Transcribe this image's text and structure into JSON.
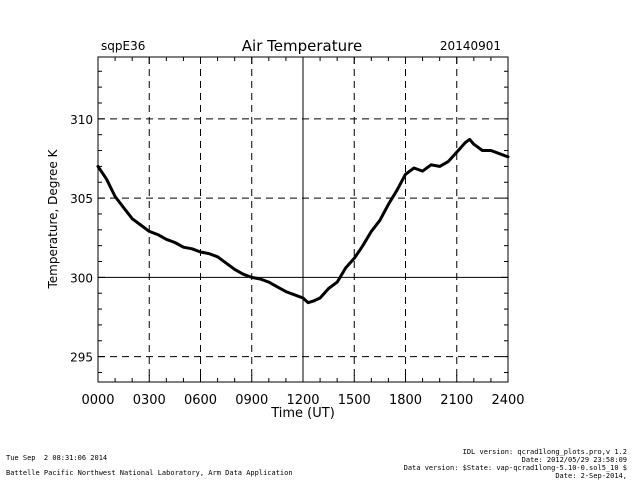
{
  "chart_data": {
    "type": "line",
    "title": "Air Temperature",
    "site_label": "sqpE36",
    "date_label": "20140901",
    "xlabel": "Time (UT)",
    "ylabel": "Temperature, Degree K",
    "xlim": [
      0,
      2400
    ],
    "ylim": [
      293.4,
      313.9
    ],
    "x_ticks": [
      "0000",
      "0300",
      "0600",
      "0900",
      "1200",
      "1500",
      "1800",
      "2100",
      "2400"
    ],
    "y_ticks": [
      "295",
      "300",
      "305",
      "310"
    ],
    "grid": true,
    "series": [
      {
        "x": [
          0,
          50,
          100,
          150,
          200,
          250,
          300,
          350,
          400,
          450,
          500,
          550,
          600,
          650,
          700,
          750,
          800,
          850,
          900,
          950,
          1000,
          1050,
          1100,
          1150,
          1200,
          1230,
          1260,
          1300,
          1350,
          1400,
          1450,
          1500,
          1550,
          1600,
          1650,
          1700,
          1750,
          1800,
          1850,
          1900,
          1950,
          2000,
          2050,
          2100,
          2150,
          2175,
          2200,
          2250,
          2300,
          2350,
          2400
        ],
        "y": [
          307.0,
          306.2,
          305.1,
          304.4,
          303.7,
          303.3,
          302.9,
          302.7,
          302.4,
          302.2,
          301.9,
          301.8,
          301.6,
          301.5,
          301.3,
          300.9,
          300.5,
          300.2,
          300.0,
          299.9,
          299.7,
          299.4,
          299.1,
          298.9,
          298.7,
          298.4,
          298.5,
          298.7,
          299.3,
          299.7,
          300.6,
          301.2,
          302.0,
          302.9,
          303.6,
          304.6,
          305.5,
          306.5,
          306.9,
          306.7,
          307.1,
          307.0,
          307.3,
          307.9,
          308.5,
          308.7,
          308.4,
          308.0,
          308.0,
          307.8,
          307.6
        ]
      }
    ]
  },
  "footer": {
    "timestamp": "Tue Sep  2 08:31:06 2014",
    "organization": "Battelle Pacific Northwest National Laboratory, Arm Data Application",
    "idl_version": "IDL version: qcrad1long_plots.pro,v 1.2",
    "date_line": "Date: 2012/05/29 23:58:09",
    "data_version": "Data version: $State: vap-qcrad1long-5.10-0.sol5_10 $",
    "date2": "Date: 2-Sep-2014,"
  }
}
